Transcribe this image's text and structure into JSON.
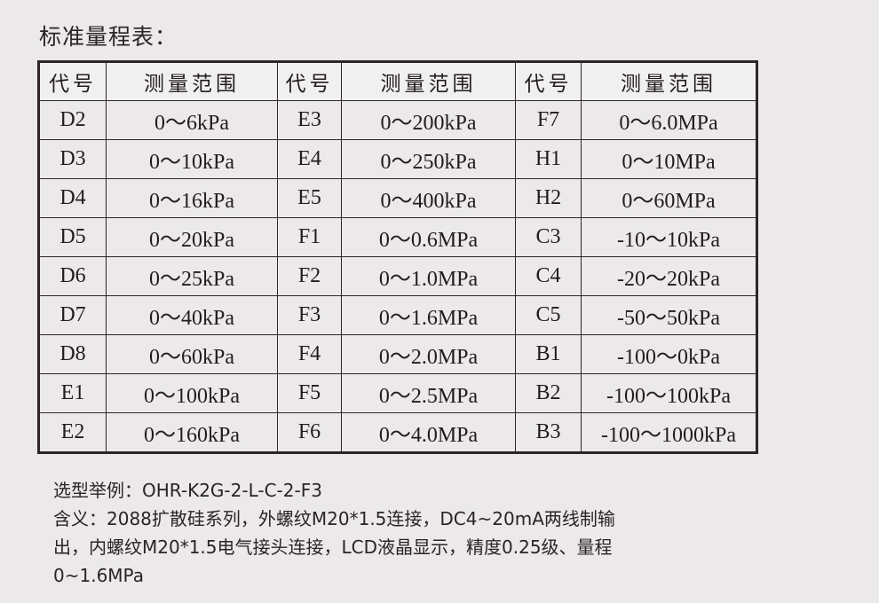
{
  "title": "标准量程表：",
  "table": {
    "headers": [
      "代号",
      "测量范围",
      "代号",
      "测量范围",
      "代号",
      "测量范围"
    ],
    "rows": [
      [
        "D2",
        "0～6kPa",
        "E3",
        "0～200kPa",
        "F7",
        "0～6.0MPa"
      ],
      [
        "D3",
        "0～10kPa",
        "E4",
        "0～250kPa",
        "H1",
        "0～10MPa"
      ],
      [
        "D4",
        "0～16kPa",
        "E5",
        "0～400kPa",
        "H2",
        "0～60MPa"
      ],
      [
        "D5",
        "0～20kPa",
        "F1",
        "0～0.6MPa",
        "C3",
        "-10～10kPa"
      ],
      [
        "D6",
        "0～25kPa",
        "F2",
        "0～1.0MPa",
        "C4",
        "-20～20kPa"
      ],
      [
        "D7",
        "0～40kPa",
        "F3",
        "0～1.6MPa",
        "C5",
        "-50～50kPa"
      ],
      [
        "D8",
        "0～60kPa",
        "F4",
        "0～2.0MPa",
        "B1",
        "-100～0kPa"
      ],
      [
        "E1",
        "0～100kPa",
        "F5",
        "0～2.5MPa",
        "B2",
        "-100～100kPa"
      ],
      [
        "E2",
        "0～160kPa",
        "F6",
        "0～4.0MPa",
        "B3",
        "-100～1000kPa"
      ]
    ]
  },
  "notes": {
    "example": "选型举例：OHR-K2G-2-L-C-2-F3",
    "meaning_lines": [
      "含义：2088扩散硅系列，外螺纹M20*1.5连接，DC4~20mA两线制输",
      "出，内螺纹M20*1.5电气接头连接，LCD液晶显示，精度0.25级、量程",
      "0~1.6MPa"
    ]
  }
}
